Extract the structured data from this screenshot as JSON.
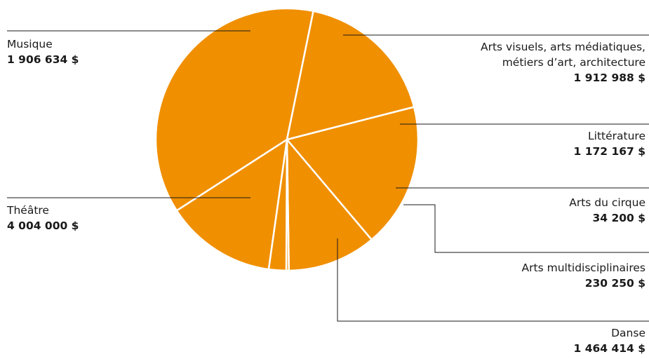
{
  "chart_data": {
    "type": "pie",
    "colors": {
      "slice": "#F08F00",
      "separator": "#ffffff",
      "leader": "#1a1a1a"
    },
    "slices": [
      {
        "name": "Arts visuels, arts médiatiques, métiers d’art, architecture",
        "name_lines": [
          "Arts visuels, arts médiatiques,",
          "métiers d’art, architecture"
        ],
        "value": 1912988,
        "value_label": "1 912 988 $"
      },
      {
        "name": "Littérature",
        "name_lines": [
          "Littérature"
        ],
        "value": 1172167,
        "value_label": "1 172 167 $"
      },
      {
        "name": "Arts du cirque",
        "name_lines": [
          "Arts du cirque"
        ],
        "value": 34200,
        "value_label": "34 200 $"
      },
      {
        "name": "Arts multidisciplinaires",
        "name_lines": [
          "Arts multidisciplinaires"
        ],
        "value": 230250,
        "value_label": "230 250 $"
      },
      {
        "name": "Danse",
        "name_lines": [
          "Danse"
        ],
        "value": 1464414,
        "value_label": "1 464 414 $"
      },
      {
        "name": "Théâtre",
        "name_lines": [
          "Théâtre"
        ],
        "value": 4004000,
        "value_label": "4 004 000 $"
      },
      {
        "name": "Musique",
        "name_lines": [
          "Musique"
        ],
        "value": 1906634,
        "value_label": "1 906 634 $"
      }
    ]
  }
}
